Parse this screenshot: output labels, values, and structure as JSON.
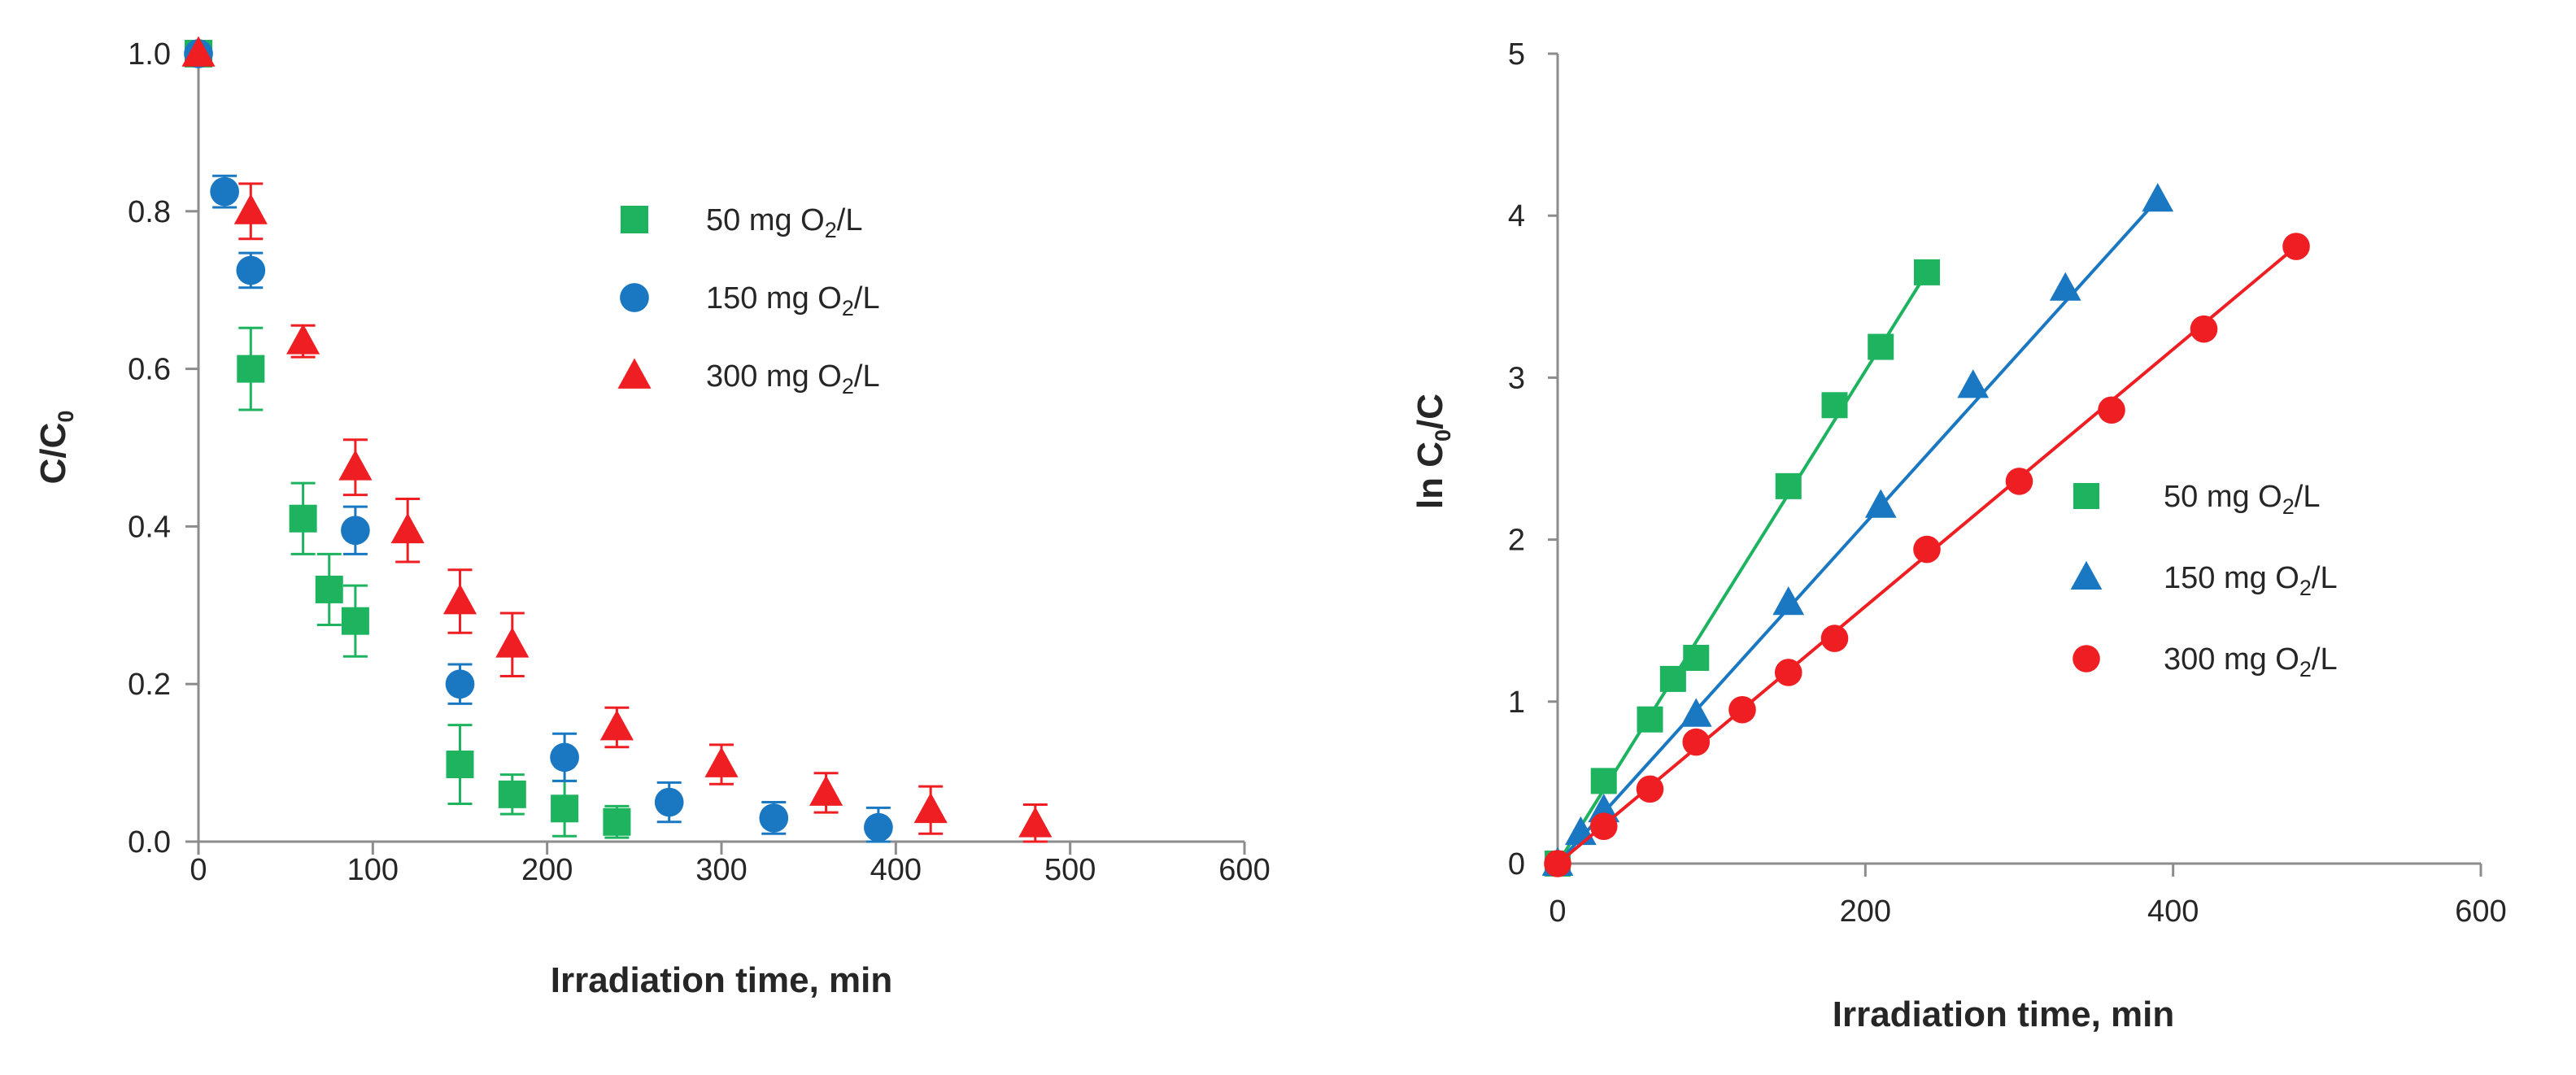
{
  "chart_data": [
    {
      "type": "scatter",
      "title": "",
      "xlabel": "Irradiation  time, min",
      "ylabel": {
        "main": "C/C",
        "sub": "0"
      },
      "xlim": [
        0,
        600
      ],
      "ylim": [
        0,
        1.0
      ],
      "xticks": [
        "0",
        "100",
        "200",
        "300",
        "400",
        "500",
        "600"
      ],
      "yticks": [
        "0.0",
        "0.2",
        "0.4",
        "0.6",
        "0.8",
        "1.0"
      ],
      "legend_position": "top-right",
      "series": [
        {
          "name": "50 mg O2/L",
          "legend": {
            "pre": "50 mg O",
            "sub": "2",
            "post": "/L"
          },
          "marker": "square",
          "color": "#1DB35F",
          "points": [
            {
              "x": 0,
              "y": 1.0,
              "err": 0.0
            },
            {
              "x": 30,
              "y": 0.6,
              "err": 0.052
            },
            {
              "x": 60,
              "y": 0.41,
              "err": 0.045
            },
            {
              "x": 75,
              "y": 0.32,
              "err": 0.045
            },
            {
              "x": 90,
              "y": 0.28,
              "err": 0.045
            },
            {
              "x": 150,
              "y": 0.098,
              "err": 0.05
            },
            {
              "x": 180,
              "y": 0.06,
              "err": 0.025
            },
            {
              "x": 210,
              "y": 0.042,
              "err": 0.035
            },
            {
              "x": 240,
              "y": 0.025,
              "err": 0.02
            }
          ]
        },
        {
          "name": "150 mg O2/L",
          "legend": {
            "pre": "150 mg O",
            "sub": "2",
            "post": "/L"
          },
          "marker": "circle",
          "color": "#1A78C2",
          "points": [
            {
              "x": 0,
              "y": 1.0,
              "err": 0.0
            },
            {
              "x": 15,
              "y": 0.825,
              "err": 0.02
            },
            {
              "x": 30,
              "y": 0.725,
              "err": 0.022
            },
            {
              "x": 90,
              "y": 0.395,
              "err": 0.03
            },
            {
              "x": 150,
              "y": 0.2,
              "err": 0.025
            },
            {
              "x": 210,
              "y": 0.107,
              "err": 0.03
            },
            {
              "x": 270,
              "y": 0.05,
              "err": 0.025
            },
            {
              "x": 330,
              "y": 0.03,
              "err": 0.02
            },
            {
              "x": 390,
              "y": 0.018,
              "err": 0.025
            }
          ]
        },
        {
          "name": "300 mg O2/L",
          "legend": {
            "pre": "300 mg O",
            "sub": "2",
            "post": "/L"
          },
          "marker": "triangle",
          "color": "#EF1E23",
          "points": [
            {
              "x": 0,
              "y": 1.0,
              "err": 0.0
            },
            {
              "x": 30,
              "y": 0.8,
              "err": 0.035
            },
            {
              "x": 60,
              "y": 0.635,
              "err": 0.02
            },
            {
              "x": 90,
              "y": 0.475,
              "err": 0.035
            },
            {
              "x": 120,
              "y": 0.395,
              "err": 0.04
            },
            {
              "x": 150,
              "y": 0.305,
              "err": 0.04
            },
            {
              "x": 180,
              "y": 0.25,
              "err": 0.04
            },
            {
              "x": 240,
              "y": 0.145,
              "err": 0.025
            },
            {
              "x": 300,
              "y": 0.098,
              "err": 0.025
            },
            {
              "x": 360,
              "y": 0.062,
              "err": 0.025
            },
            {
              "x": 420,
              "y": 0.04,
              "err": 0.03
            },
            {
              "x": 480,
              "y": 0.022,
              "err": 0.025
            }
          ]
        }
      ]
    },
    {
      "type": "scatter",
      "title": "",
      "xlabel": "Irradiation  time, min",
      "ylabel": {
        "main": "ln C",
        "sub": "0",
        "post": "/C"
      },
      "xlim": [
        0,
        600
      ],
      "ylim": [
        0,
        5
      ],
      "xticks": [
        "0",
        "200",
        "400",
        "600"
      ],
      "yticks": [
        "0",
        "1",
        "2",
        "3",
        "4",
        "5"
      ],
      "legend_position": "center-right",
      "series": [
        {
          "name": "50 mg O2/L",
          "legend": {
            "pre": "50 mg O",
            "sub": "2",
            "post": "/L"
          },
          "marker": "square",
          "color": "#1DB35F",
          "points": [
            {
              "x": 0,
              "y": 0
            },
            {
              "x": 30,
              "y": 0.51
            },
            {
              "x": 60,
              "y": 0.89
            },
            {
              "x": 75,
              "y": 1.14
            },
            {
              "x": 90,
              "y": 1.27
            },
            {
              "x": 150,
              "y": 2.33
            },
            {
              "x": 180,
              "y": 2.83
            },
            {
              "x": 210,
              "y": 3.19
            },
            {
              "x": 240,
              "y": 3.65
            }
          ],
          "fit": {
            "x": [
              0,
              240
            ],
            "y": [
              0,
              3.65
            ]
          }
        },
        {
          "name": "150 mg O2/L",
          "legend": {
            "pre": "150 mg O",
            "sub": "2",
            "post": "/L"
          },
          "marker": "triangle",
          "color": "#1A78C2",
          "points": [
            {
              "x": 0,
              "y": 0
            },
            {
              "x": 15,
              "y": 0.19
            },
            {
              "x": 30,
              "y": 0.33
            },
            {
              "x": 90,
              "y": 0.92
            },
            {
              "x": 150,
              "y": 1.61
            },
            {
              "x": 210,
              "y": 2.21
            },
            {
              "x": 270,
              "y": 2.95
            },
            {
              "x": 330,
              "y": 3.55
            },
            {
              "x": 390,
              "y": 4.1
            }
          ],
          "fit": {
            "x": [
              0,
              390
            ],
            "y": [
              0,
              4.1
            ]
          }
        },
        {
          "name": "300 mg O2/L",
          "legend": {
            "pre": "300 mg O",
            "sub": "2",
            "post": "/L"
          },
          "marker": "circle",
          "color": "#EF1E23",
          "points": [
            {
              "x": 0,
              "y": 0
            },
            {
              "x": 30,
              "y": 0.23
            },
            {
              "x": 60,
              "y": 0.46
            },
            {
              "x": 90,
              "y": 0.75
            },
            {
              "x": 120,
              "y": 0.95
            },
            {
              "x": 150,
              "y": 1.18
            },
            {
              "x": 180,
              "y": 1.39
            },
            {
              "x": 240,
              "y": 1.94
            },
            {
              "x": 300,
              "y": 2.36
            },
            {
              "x": 360,
              "y": 2.8
            },
            {
              "x": 420,
              "y": 3.3
            },
            {
              "x": 480,
              "y": 3.81
            }
          ],
          "fit": {
            "x": [
              0,
              480
            ],
            "y": [
              0,
              3.81
            ]
          }
        }
      ]
    }
  ]
}
